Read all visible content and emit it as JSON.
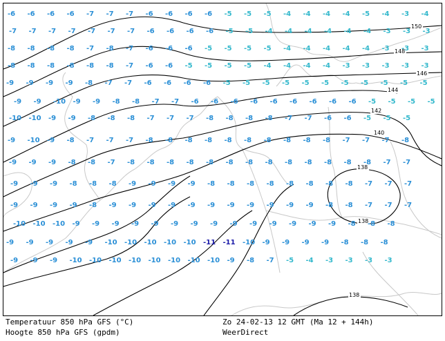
{
  "footer": {
    "left_line1": "Temperatuur 850 hPa GFS (°C)",
    "left_line2": "Hoogte 850 hPa GFS (gpdm)",
    "right_line1": "Zo 24-02-13 12 GMT (Ma 12 + 144h)",
    "right_line2": "WeerDirect"
  },
  "colors": {
    "temp_warm": "#33b8cc",
    "temp_mild": "#2a8fd6",
    "temp_cold": "#1a1aa8",
    "contour": "#000000",
    "coast": "#c8c8c8"
  },
  "contour_labels": [
    "150",
    "148",
    "146",
    "144",
    "142",
    "140",
    "138",
    "138",
    "138"
  ],
  "temperatures": [
    [
      -6,
      -6,
      -6,
      -6,
      -7,
      -7,
      -7,
      -6,
      -6,
      -6,
      -6,
      -5,
      -5,
      -5,
      -4,
      -4,
      -4,
      -4,
      -5,
      -4,
      -3,
      -4,
      -4
    ],
    [
      -7,
      -7,
      -7,
      -7,
      -7,
      -7,
      -7,
      -6,
      -6,
      -6,
      -6,
      -5,
      -5,
      -4,
      -4,
      -4,
      -4,
      -4,
      -4,
      -3,
      -3,
      -3,
      -3
    ],
    [
      -8,
      -8,
      -8,
      -8,
      -7,
      -8,
      -7,
      -6,
      -6,
      -6,
      -5,
      -5,
      -5,
      -5,
      -4,
      -4,
      -4,
      -4,
      -4,
      -3,
      -3,
      -3,
      -3
    ],
    [
      -8,
      -8,
      -8,
      -8,
      -8,
      -8,
      -7,
      -6,
      -6,
      -5,
      -5,
      -5,
      -5,
      -4,
      -4,
      -4,
      -4,
      -3,
      -3,
      -3,
      -3,
      -3
    ],
    [
      -9,
      -9,
      -9,
      -9,
      -8,
      -7,
      -7,
      -6,
      -6,
      -6,
      -6,
      -5,
      -5,
      -5,
      -5,
      -5,
      -5,
      -5,
      -5,
      -5,
      -5,
      -5
    ],
    [
      -9,
      -9,
      -10,
      -9,
      -9,
      -8,
      -8,
      -7,
      -7,
      -6,
      -6,
      -6,
      -6,
      -6,
      -6,
      -6,
      -6,
      -6,
      -5,
      -5,
      -5,
      -5
    ],
    [
      -10,
      -10,
      -9,
      -9,
      -8,
      -8,
      -8,
      -7,
      -7,
      -7,
      -8,
      -8,
      -8,
      -8,
      -7,
      -7,
      -6,
      -6,
      -5,
      -5,
      -5
    ],
    [
      -9,
      -10,
      -9,
      -8,
      -7,
      -7,
      -7,
      -8,
      -8,
      -8,
      -8,
      -8,
      -8,
      -8,
      -8,
      -8,
      -8,
      -7,
      -7,
      -7,
      -8
    ],
    [
      -9,
      -9,
      -9,
      -8,
      -8,
      -7,
      -8,
      -8,
      -8,
      -8,
      -8,
      -8,
      -8,
      -8,
      -8,
      -8,
      -8,
      -8,
      -8,
      -7,
      -7
    ],
    [
      -9,
      -9,
      -9,
      -8,
      -8,
      -8,
      -9,
      -9,
      -9,
      -9,
      -8,
      -8,
      -8,
      -8,
      -8,
      -8,
      -8,
      -8,
      -7,
      -7,
      -7
    ],
    [
      -9,
      -9,
      -9,
      -9,
      -8,
      -9,
      -9,
      -9,
      -9,
      -9,
      -9,
      -9,
      -9,
      -9,
      -9,
      -9,
      -8,
      -8,
      -7,
      -7,
      -7
    ],
    [
      -10,
      -10,
      -10,
      -9,
      -9,
      -9,
      -9,
      -9,
      -9,
      -9,
      -9,
      -9,
      -9,
      -9,
      -9,
      -9,
      -9,
      -8,
      -8,
      -8
    ],
    [
      -9,
      -9,
      -9,
      -9,
      -9,
      -10,
      -10,
      -10,
      -10,
      -10,
      -11,
      -11,
      -10,
      -9,
      -9,
      -9,
      -9,
      -8,
      -8,
      -8
    ],
    [
      -9,
      -9,
      -9,
      -10,
      -10,
      -10,
      -10,
      -10,
      -10,
      -10,
      -10,
      -9,
      -8,
      -7,
      -5,
      -4,
      -3,
      -3,
      -3,
      -3
    ]
  ]
}
